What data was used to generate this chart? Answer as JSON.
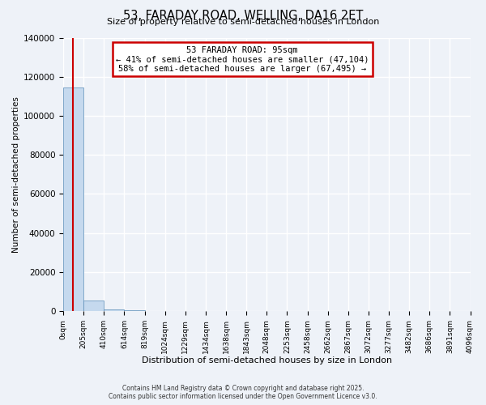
{
  "title": "53, FARADAY ROAD, WELLING, DA16 2ET",
  "subtitle": "Size of property relative to semi-detached houses in London",
  "xlabel": "Distribution of semi-detached houses by size in London",
  "ylabel": "Number of semi-detached properties",
  "footer_line1": "Contains HM Land Registry data © Crown copyright and database right 2025.",
  "footer_line2": "Contains public sector information licensed under the Open Government Licence v3.0.",
  "annotation_title": "53 FARADAY ROAD: 95sqm",
  "annotation_line2": "← 41% of semi-detached houses are smaller (47,104)",
  "annotation_line3": "58% of semi-detached houses are larger (67,495) →",
  "property_size_sqm": 95,
  "bar_values": [
    114599,
    5200,
    900,
    300,
    150,
    80,
    50,
    30,
    20,
    15,
    10,
    8,
    5,
    4,
    3,
    2,
    2,
    1,
    1,
    1
  ],
  "bar_color": "#c5d9ee",
  "bar_edge_color": "#5b8db8",
  "red_line_color": "#cc0000",
  "annotation_box_facecolor": "#ffffff",
  "annotation_box_edgecolor": "#cc0000",
  "background_color": "#eef2f8",
  "grid_color": "#ffffff",
  "ylim": [
    0,
    140000
  ],
  "yticks": [
    0,
    20000,
    40000,
    60000,
    80000,
    100000,
    120000,
    140000
  ],
  "bin_edges": [
    0,
    205,
    410,
    614,
    819,
    1024,
    1229,
    1434,
    1638,
    1843,
    2048,
    2253,
    2458,
    2662,
    2867,
    3072,
    3277,
    3482,
    3686,
    3891,
    4096
  ],
  "figsize": [
    6.0,
    5.0
  ],
  "dpi": 100
}
